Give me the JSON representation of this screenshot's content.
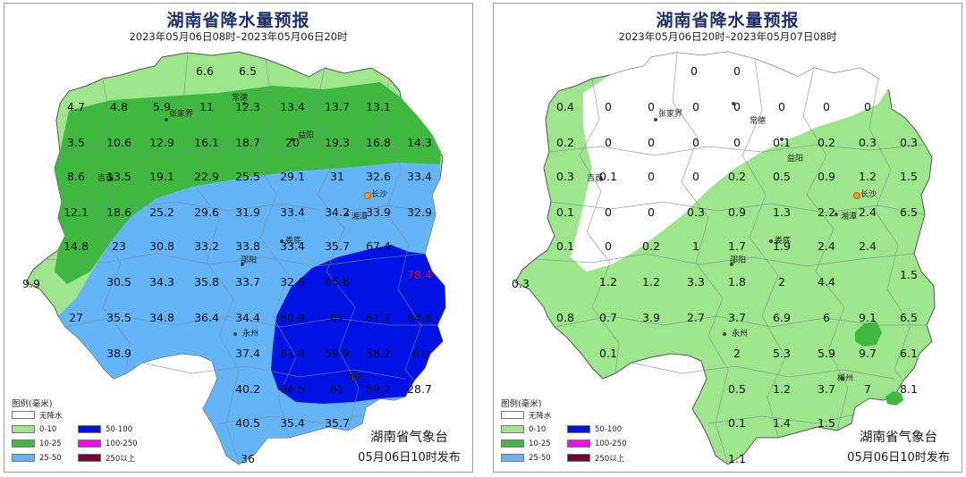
{
  "colors": {
    "none": "#ffffff",
    "r0_10": "#9ee68c",
    "r10_25": "#3fb83f",
    "r25_50": "#64b4f8",
    "r50_100": "#0012e4",
    "r100_250": "#ff00ff",
    "r250": "#7a0033"
  },
  "maps": [
    {
      "title": "湖南省降水量预报",
      "date_range": "2023年05月06日08时–2023年05月06日20时",
      "issuer": "湖南省气象台",
      "issue_time": "05月06日10时发布",
      "legend": {
        "title": "图例(毫米)",
        "items": [
          {
            "label": "无降水",
            "color": "#ffffff"
          },
          {
            "label": "0-10",
            "color": "#9ee68c"
          },
          {
            "label": "10-25",
            "color": "#3fb83f"
          },
          {
            "label": "25-50",
            "color": "#64b4f8"
          },
          {
            "label": "50-100",
            "color": "#0012e4"
          },
          {
            "label": "100-250",
            "color": "#ff00ff"
          },
          {
            "label": "250以上",
            "color": "#7a0033"
          }
        ]
      },
      "cities": [
        "张家界",
        "常德",
        "益阳",
        "吉首",
        "长沙",
        "湘潭",
        "娄底",
        "邵阳",
        "永州",
        "郴州"
      ],
      "values": [
        "6.6",
        "6.5",
        "4.7",
        "4.8",
        "5.9",
        "11",
        "12.3",
        "13.4",
        "13.7",
        "13.1",
        "3.5",
        "10.6",
        "12.9",
        "16.1",
        "18.7",
        "20",
        "19.3",
        "16.8",
        "14.3",
        "8.6",
        "13.5",
        "19.1",
        "22.9",
        "25.5",
        "29.1",
        "31",
        "32.6",
        "33.4",
        "12.1",
        "18.6",
        "25.2",
        "29.6",
        "31.9",
        "33.4",
        "34.2",
        "33.9",
        "32.9",
        "14.8",
        "23",
        "30.8",
        "33.2",
        "33.8",
        "33.4",
        "35.7",
        "67.4",
        "78.4",
        "9.9",
        "30.5",
        "34.3",
        "35.8",
        "33.7",
        "32.6",
        "65.6",
        "27",
        "35.5",
        "34.8",
        "36.4",
        "34.4",
        "60.9",
        "61",
        "61.7",
        "64.8",
        "38.9",
        "37.4",
        "61.9",
        "59.9",
        "58.2",
        "61",
        "40.2",
        "64.5",
        "61",
        "59.2",
        "28.7",
        "40.5",
        "35.4",
        "35.7",
        "36"
      ]
    },
    {
      "title": "湖南省降水量预报",
      "date_range": "2023年05月06日20时–2023年05月07日08时",
      "issuer": "湖南省气象台",
      "issue_time": "05月06日10时发布",
      "legend": {
        "title": "图例(毫米)",
        "items": [
          {
            "label": "无降水",
            "color": "#ffffff"
          },
          {
            "label": "0-10",
            "color": "#9ee68c"
          },
          {
            "label": "10-25",
            "color": "#3fb83f"
          },
          {
            "label": "25-50",
            "color": "#64b4f8"
          },
          {
            "label": "50-100",
            "color": "#0012e4"
          },
          {
            "label": "100-250",
            "color": "#ff00ff"
          },
          {
            "label": "250以上",
            "color": "#7a0033"
          }
        ]
      },
      "cities": [
        "张家界",
        "常德",
        "益阳",
        "吉首",
        "长沙",
        "湘潭",
        "娄底",
        "邵阳",
        "永州",
        "郴州"
      ],
      "values": [
        "0",
        "0",
        "0.4",
        "0",
        "0",
        "0",
        "0",
        "0",
        "0",
        "0",
        "0.2",
        "0",
        "0",
        "0",
        "0",
        "0.1",
        "0.2",
        "0.3",
        "0.3",
        "0.3",
        "0.1",
        "0",
        "0",
        "0.2",
        "0.5",
        "0.9",
        "1.2",
        "1.5",
        "0.1",
        "0",
        "0",
        "0.3",
        "0.9",
        "1.3",
        "2.2",
        "2.4",
        "6.5",
        "0.1",
        "0",
        "0.2",
        "1",
        "1.7",
        "1.9",
        "2.4",
        "2.4",
        "1.5",
        "0.3",
        "1.2",
        "1.2",
        "3.3",
        "1.8",
        "2",
        "4.4",
        "0.8",
        "0.7",
        "3.9",
        "2.7",
        "3.7",
        "6.9",
        "6",
        "9.1",
        "6.5",
        "0.1",
        "2",
        "5.3",
        "5.9",
        "9.7",
        "6.1",
        "0.5",
        "1.2",
        "3.7",
        "7",
        "8.1",
        "0.1",
        "1.4",
        "1.5",
        "1.1"
      ]
    }
  ]
}
